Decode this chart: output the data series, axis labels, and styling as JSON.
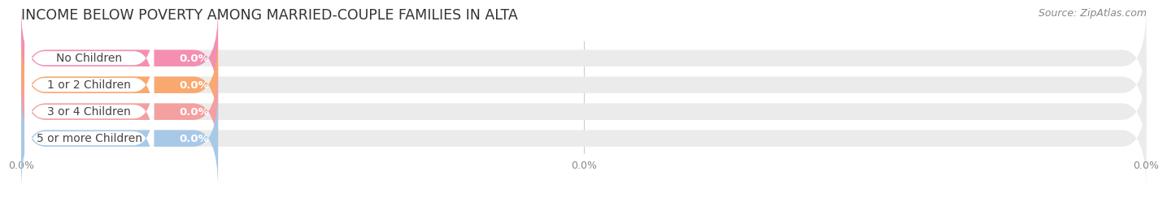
{
  "title": "INCOME BELOW POVERTY AMONG MARRIED-COUPLE FAMILIES IN ALTA",
  "source": "Source: ZipAtlas.com",
  "categories": [
    "No Children",
    "1 or 2 Children",
    "3 or 4 Children",
    "5 or more Children"
  ],
  "values": [
    0.0,
    0.0,
    0.0,
    0.0
  ],
  "bar_colors": [
    "#f48fb1",
    "#f9a870",
    "#f4a0a0",
    "#a8c8e8"
  ],
  "background_color": "#ffffff",
  "bar_bg_color": "#ebebeb",
  "title_fontsize": 12.5,
  "source_fontsize": 9,
  "bar_label_fontsize": 9.5,
  "category_fontsize": 10,
  "xtick_labels": [
    "0.0%",
    "0.0%",
    "0.0%"
  ]
}
